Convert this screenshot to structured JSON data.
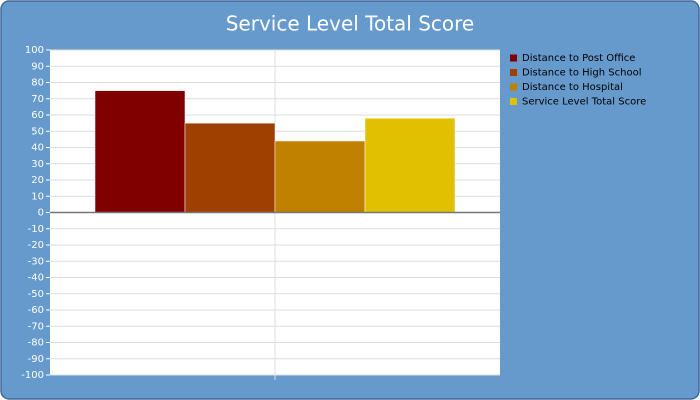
{
  "chart_data": {
    "type": "bar",
    "title": "Service Level Total Score",
    "categories": [
      null
    ],
    "series": [
      {
        "name": "Distance to Post Office",
        "color": "#800000",
        "values": [
          75
        ]
      },
      {
        "name": "Distance to High School",
        "color": "#a04000",
        "values": [
          55
        ]
      },
      {
        "name": "Distance to Hospital",
        "color": "#c08000",
        "values": [
          44
        ]
      },
      {
        "name": "Service Level Total Score",
        "color": "#e0c000",
        "values": [
          58
        ]
      }
    ],
    "ylim": [
      -100,
      100
    ],
    "yticks": [
      -100,
      -90,
      -80,
      -70,
      -60,
      -50,
      -40,
      -30,
      -20,
      -10,
      0,
      10,
      20,
      30,
      40,
      50,
      60,
      70,
      80,
      90,
      100
    ],
    "grid": true,
    "legend": "right"
  }
}
